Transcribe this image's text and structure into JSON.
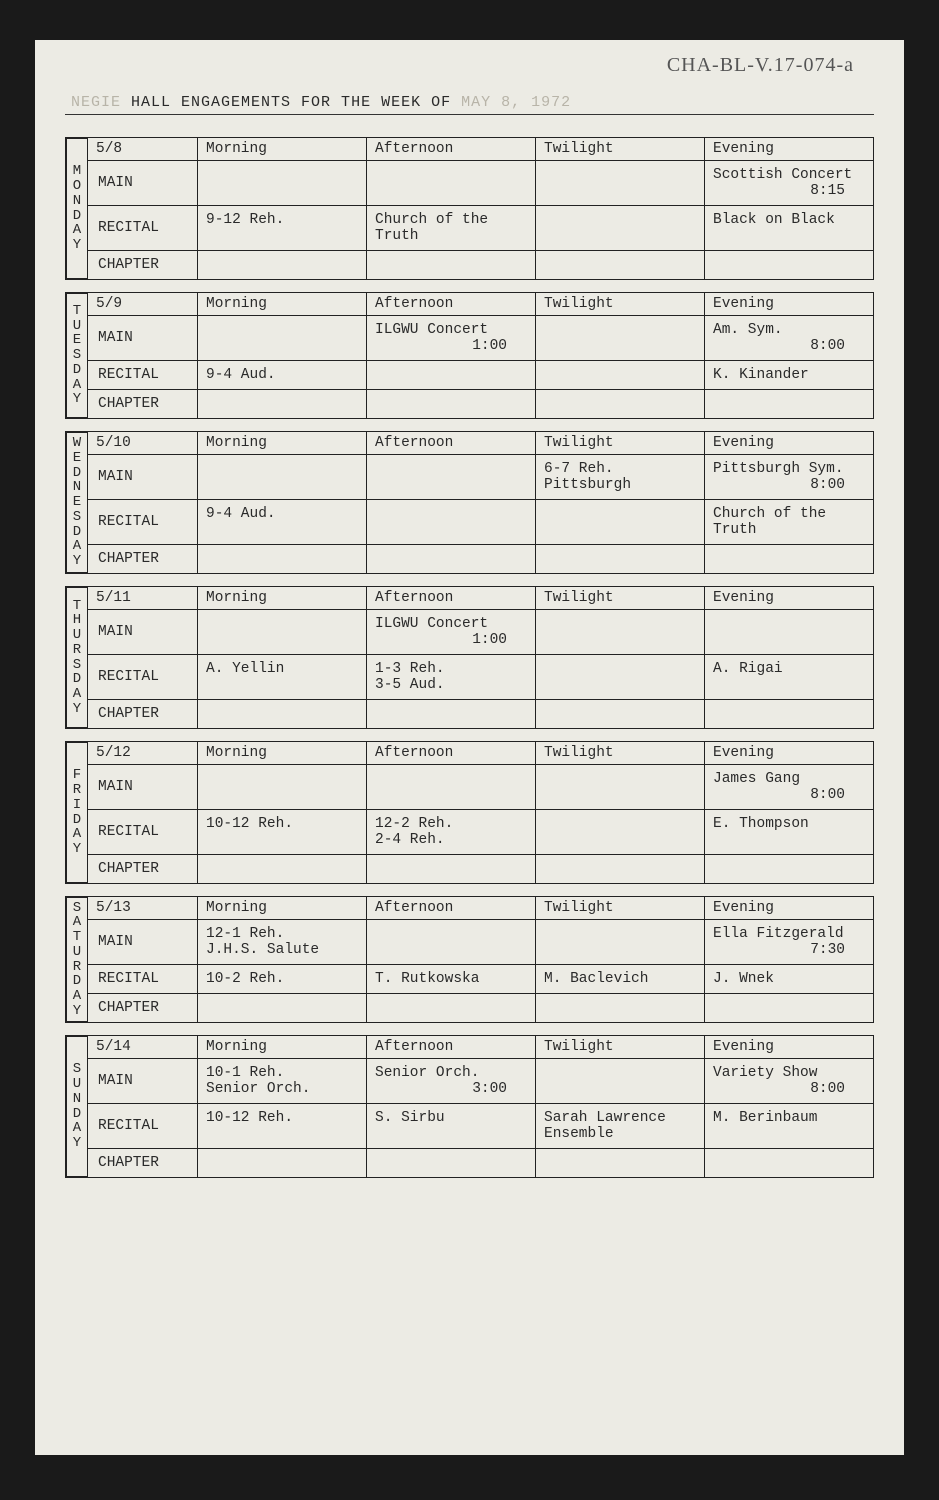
{
  "handwritten_note": "CHA-BL-V.17-074-a",
  "header": {
    "prefix_faded": "NEGIE",
    "main": "HALL ENGAGEMENTS FOR THE WEEK OF",
    "suffix_faded": "   MAY 8, 1972"
  },
  "columns": {
    "morning": "Morning",
    "afternoon": "Afternoon",
    "twilight": "Twilight",
    "evening": "Evening"
  },
  "venues": {
    "main": "MAIN",
    "recital": "RECITAL",
    "chapter": "CHAPTER"
  },
  "days": [
    {
      "label": "MONDAY",
      "date": "5/8",
      "rows": {
        "main": {
          "morning": "",
          "afternoon": "",
          "twilight": "",
          "evening": [
            "Scottish Concert",
            {
              "text": "8:15",
              "align": "right"
            }
          ]
        },
        "recital": {
          "morning": "9-12 Reh.",
          "afternoon": "Church of the Truth",
          "twilight": "",
          "evening": "Black on Black"
        },
        "chapter": {
          "morning": "",
          "afternoon": "",
          "twilight": "",
          "evening": ""
        }
      }
    },
    {
      "label": "TUESDAY",
      "date": "5/9",
      "rows": {
        "main": {
          "morning": "",
          "afternoon": [
            "ILGWU Concert",
            {
              "text": "1:00",
              "align": "right"
            }
          ],
          "twilight": "",
          "evening": [
            "Am. Sym.",
            {
              "text": "8:00",
              "align": "right"
            }
          ]
        },
        "recital": {
          "morning": "9-4 Aud.",
          "afternoon": "",
          "twilight": "",
          "evening": "K. Kinander"
        },
        "chapter": {
          "morning": "",
          "afternoon": "",
          "twilight": "",
          "evening": ""
        }
      }
    },
    {
      "label": "WEDNESDAY",
      "date": "5/10",
      "rows": {
        "main": {
          "morning": "",
          "afternoon": "",
          "twilight": [
            "6-7 Reh.",
            "Pittsburgh"
          ],
          "evening": [
            "Pittsburgh Sym.",
            {
              "text": "8:00",
              "align": "right"
            }
          ]
        },
        "recital": {
          "morning": "9-4 Aud.",
          "afternoon": "",
          "twilight": "",
          "evening": "Church of the Truth"
        },
        "chapter": {
          "morning": "",
          "afternoon": "",
          "twilight": "",
          "evening": ""
        }
      }
    },
    {
      "label": "THURSDAY",
      "date": "5/11",
      "rows": {
        "main": {
          "morning": "",
          "afternoon": [
            "ILGWU Concert",
            {
              "text": "1:00",
              "align": "right"
            }
          ],
          "twilight": "",
          "evening": ""
        },
        "recital": {
          "morning": "A. Yellin",
          "afternoon": [
            "1-3 Reh.",
            "3-5 Aud."
          ],
          "twilight": "",
          "evening": "A. Rigai"
        },
        "chapter": {
          "morning": "",
          "afternoon": "",
          "twilight": "",
          "evening": ""
        }
      }
    },
    {
      "label": "FRIDAY",
      "date": "5/12",
      "rows": {
        "main": {
          "morning": "",
          "afternoon": "",
          "twilight": "",
          "evening": [
            "James Gang",
            {
              "text": "8:00",
              "align": "right"
            }
          ]
        },
        "recital": {
          "morning": "10-12 Reh.",
          "afternoon": [
            "12-2 Reh.",
            "2-4 Reh."
          ],
          "twilight": "",
          "evening": "E.  Thompson"
        },
        "chapter": {
          "morning": "",
          "afternoon": "",
          "twilight": "",
          "evening": ""
        }
      }
    },
    {
      "label": "SATURDAY",
      "date": "5/13",
      "rows": {
        "main": {
          "morning": [
            "12-1 Reh.",
            "J.H.S. Salute"
          ],
          "afternoon": "",
          "twilight": "",
          "evening": [
            "Ella Fitzgerald",
            {
              "text": "7:30",
              "align": "right"
            }
          ]
        },
        "recital": {
          "morning": "10-2 Reh.",
          "afternoon": "T. Rutkowska",
          "twilight": "M. Baclevich",
          "evening": "J. Wnek"
        },
        "chapter": {
          "morning": "",
          "afternoon": "",
          "twilight": "",
          "evening": ""
        }
      }
    },
    {
      "label": "SUNDAY",
      "date": "5/14",
      "rows": {
        "main": {
          "morning": [
            "10-1 Reh.",
            "Senior Orch."
          ],
          "afternoon": [
            "Senior Orch.",
            {
              "text": "3:00",
              "align": "right"
            }
          ],
          "twilight": "",
          "evening": [
            "Variety Show",
            {
              "text": "8:00",
              "align": "right"
            }
          ]
        },
        "recital": {
          "morning": "10-12 Reh.",
          "afternoon": "S. Sirbu",
          "twilight": "Sarah Lawrence Ensemble",
          "evening": "M. Berinbaum"
        },
        "chapter": {
          "morning": "",
          "afternoon": "",
          "twilight": "",
          "evening": ""
        }
      }
    }
  ]
}
